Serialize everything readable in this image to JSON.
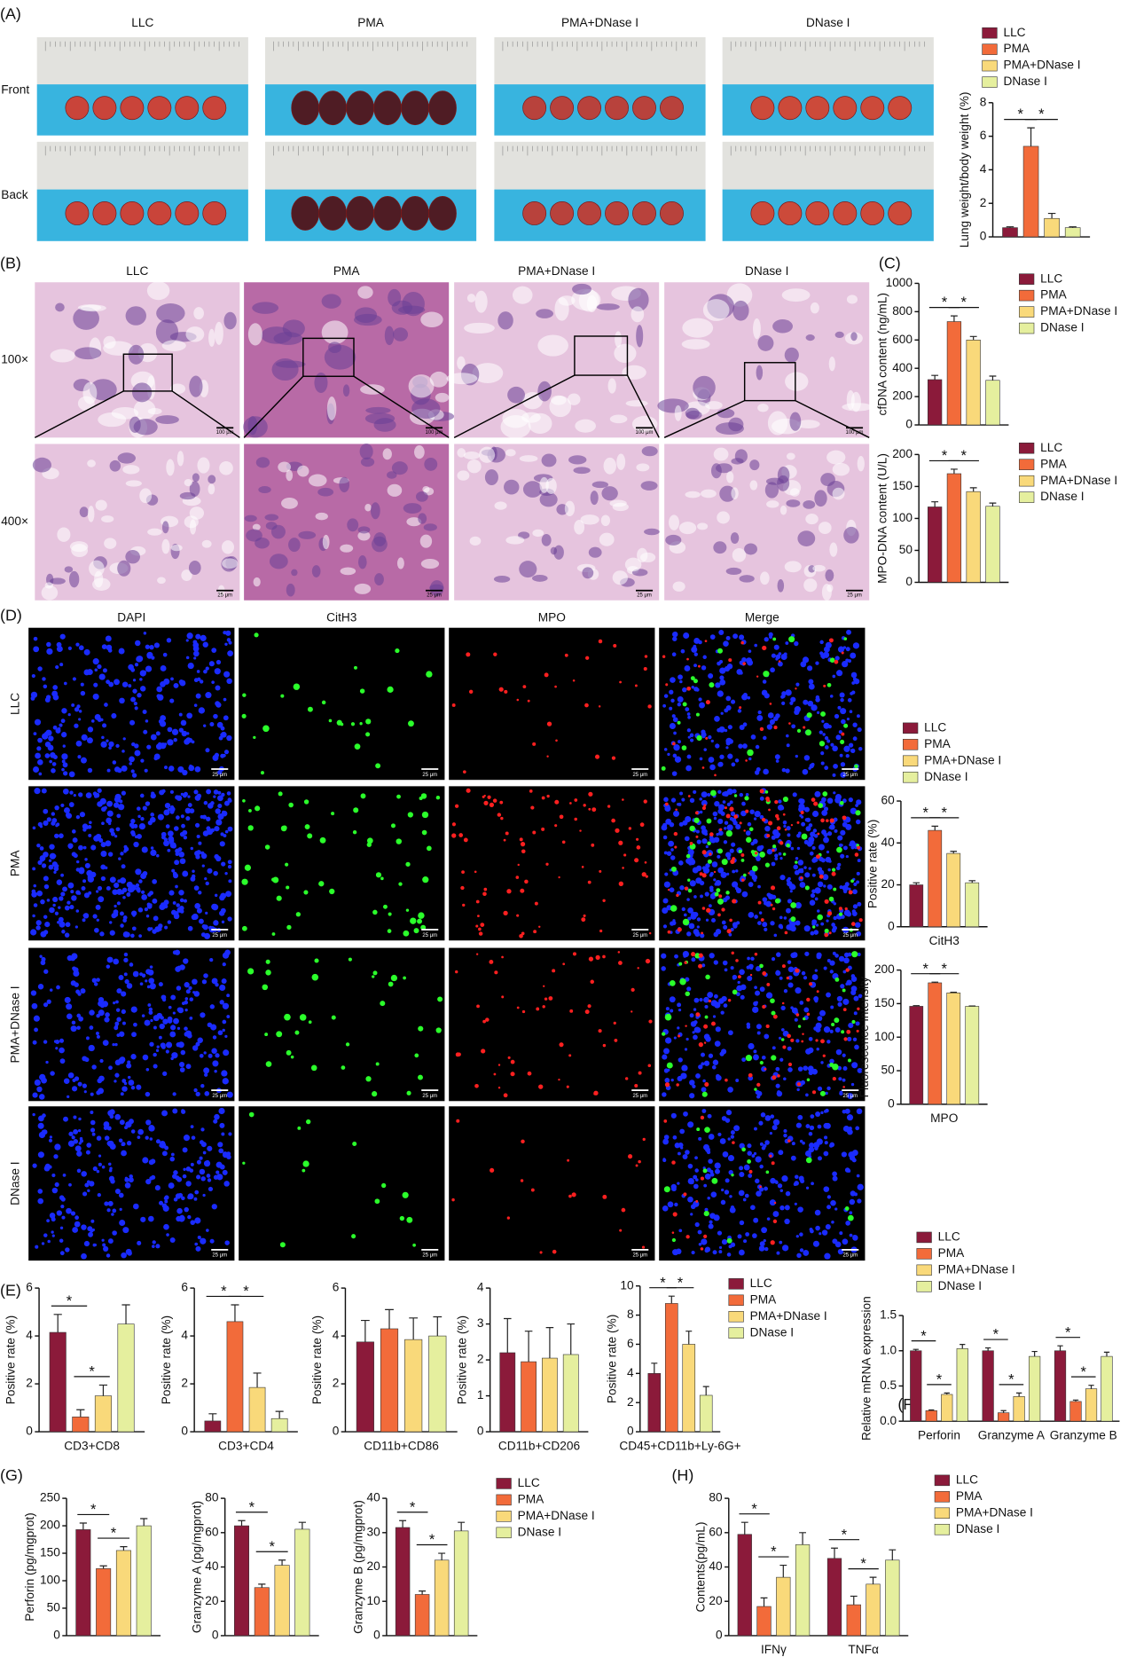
{
  "panel_labels": [
    "(A)",
    "(B)",
    "(C)",
    "(D)",
    "(E)",
    "(F)",
    "(G)",
    "(H)"
  ],
  "lung_photos": {
    "groups": [
      "LLC",
      "PMA",
      "PMA+DNase I",
      "DNase I"
    ],
    "views": [
      "Front",
      "Back"
    ]
  },
  "histology": {
    "groups": [
      "LLC",
      "PMA",
      "PMA+DNase I",
      "DNase I"
    ],
    "magnifications": [
      "100×",
      "400×"
    ],
    "scale_bars": [
      "100 μm",
      "25 μm"
    ]
  },
  "immunofluorescence": {
    "channels": [
      "DAPI",
      "CitH3",
      "MPO",
      "Merge"
    ],
    "groups": [
      "LLC",
      "PMA",
      "PMA+DNase I",
      "DNase I"
    ],
    "scale_bar": "25 μm"
  },
  "chart_data": [
    {
      "type": "bar",
      "ylabel": "Lung weight/body weight (%)",
      "categories": [
        null
      ],
      "series": [
        {
          "name": "LLC",
          "color": "#8b1a3a",
          "values": [
            0.55
          ],
          "errors": [
            0.05
          ]
        },
        {
          "name": "PMA",
          "color": "#f26b3a",
          "values": [
            5.4
          ],
          "errors": [
            1.1
          ]
        },
        {
          "name": "PMA+DNase I",
          "color": "#f9d97a",
          "values": [
            1.1
          ],
          "errors": [
            0.3
          ]
        },
        {
          "name": "DNase I",
          "color": "#e5ef9e",
          "values": [
            0.55
          ],
          "errors": [
            0.05
          ]
        }
      ],
      "ylim": [
        0,
        8
      ],
      "yticks": [
        0,
        2,
        4,
        6,
        8
      ],
      "legend": true,
      "annotations": [
        [
          "*",
          "*"
        ]
      ]
    },
    {
      "type": "bar",
      "ylabel": "cfDNA content (ng/mL)",
      "categories": [
        null
      ],
      "series": [
        {
          "name": "LLC",
          "color": "#8b1a3a",
          "values": [
            320
          ],
          "errors": [
            30
          ]
        },
        {
          "name": "PMA",
          "color": "#f26b3a",
          "values": [
            730
          ],
          "errors": [
            40
          ]
        },
        {
          "name": "PMA+DNase I",
          "color": "#f9d97a",
          "values": [
            600
          ],
          "errors": [
            25
          ]
        },
        {
          "name": "DNase I",
          "color": "#e5ef9e",
          "values": [
            315
          ],
          "errors": [
            30
          ]
        }
      ],
      "ylim": [
        0,
        1000
      ],
      "yticks": [
        0,
        200,
        400,
        600,
        800,
        1000
      ],
      "legend": true,
      "annotations": [
        [
          "*",
          "*"
        ]
      ]
    },
    {
      "type": "bar",
      "ylabel": "MPO-DNA content (U/L)",
      "categories": [
        null
      ],
      "series": [
        {
          "name": "LLC",
          "color": "#8b1a3a",
          "values": [
            118
          ],
          "errors": [
            8
          ]
        },
        {
          "name": "PMA",
          "color": "#f26b3a",
          "values": [
            170
          ],
          "errors": [
            7
          ]
        },
        {
          "name": "PMA+DNase I",
          "color": "#f9d97a",
          "values": [
            142
          ],
          "errors": [
            6
          ]
        },
        {
          "name": "DNase I",
          "color": "#e5ef9e",
          "values": [
            119
          ],
          "errors": [
            5
          ]
        }
      ],
      "ylim": [
        0,
        200
      ],
      "yticks": [
        0,
        50,
        100,
        150,
        200
      ],
      "legend": true,
      "annotations": [
        [
          "*",
          "*"
        ]
      ]
    },
    {
      "type": "bar",
      "ylabel": "Positive rate (%)",
      "categories": [
        "CitH3"
      ],
      "series": [
        {
          "name": "LLC",
          "color": "#8b1a3a",
          "values": [
            20
          ],
          "errors": [
            1
          ]
        },
        {
          "name": "PMA",
          "color": "#f26b3a",
          "values": [
            46
          ],
          "errors": [
            2
          ]
        },
        {
          "name": "PMA+DNase I",
          "color": "#f9d97a",
          "values": [
            35
          ],
          "errors": [
            1
          ]
        },
        {
          "name": "DNase I",
          "color": "#e5ef9e",
          "values": [
            21
          ],
          "errors": [
            1
          ]
        }
      ],
      "ylim": [
        0,
        60
      ],
      "yticks": [
        0,
        20,
        40,
        60
      ],
      "legend": true,
      "annotations": [
        [
          "*",
          "*"
        ]
      ]
    },
    {
      "type": "bar",
      "ylabel": "Fluorescence intensity",
      "categories": [
        "MPO"
      ],
      "series": [
        {
          "color": "#8b1a3a",
          "values": [
            146
          ],
          "errors": [
            1
          ]
        },
        {
          "color": "#f26b3a",
          "values": [
            181
          ],
          "errors": [
            1
          ]
        },
        {
          "color": "#f9d97a",
          "values": [
            166
          ],
          "errors": [
            1
          ]
        },
        {
          "color": "#e5ef9e",
          "values": [
            146
          ],
          "errors": [
            0.5
          ]
        }
      ],
      "ylim": [
        0,
        200
      ],
      "yticks": [
        0,
        50,
        100,
        150,
        200
      ],
      "annotations": [
        [
          "*",
          "*"
        ]
      ]
    },
    {
      "type": "bar",
      "ylabel": "Positive rate (%)",
      "categories": [
        "CD3+CD8"
      ],
      "series": [
        {
          "color": "#8b1a3a",
          "values": [
            4.15
          ],
          "errors": [
            0.75
          ]
        },
        {
          "color": "#f26b3a",
          "values": [
            0.62
          ],
          "errors": [
            0.3
          ]
        },
        {
          "color": "#f9d97a",
          "values": [
            1.5
          ],
          "errors": [
            0.45
          ]
        },
        {
          "color": "#e5ef9e",
          "values": [
            4.5
          ],
          "errors": [
            0.8
          ]
        }
      ],
      "ylim": [
        0,
        6
      ],
      "yticks": [
        0,
        2,
        4,
        6
      ],
      "annotations": [
        [
          "*",
          "*"
        ]
      ]
    },
    {
      "type": "bar",
      "ylabel": "Positive rate (%)",
      "categories": [
        "CD3+CD4"
      ],
      "series": [
        {
          "color": "#8b1a3a",
          "values": [
            0.45
          ],
          "errors": [
            0.3
          ]
        },
        {
          "color": "#f26b3a",
          "values": [
            4.6
          ],
          "errors": [
            0.7
          ]
        },
        {
          "color": "#f9d97a",
          "values": [
            1.85
          ],
          "errors": [
            0.6
          ]
        },
        {
          "color": "#e5ef9e",
          "values": [
            0.55
          ],
          "errors": [
            0.3
          ]
        }
      ],
      "ylim": [
        0,
        6
      ],
      "yticks": [
        0,
        2,
        4,
        6
      ],
      "annotations": [
        [
          "*",
          "*"
        ]
      ]
    },
    {
      "type": "bar",
      "ylabel": "Positive rate (%)",
      "categories": [
        "CD11b+CD86"
      ],
      "series": [
        {
          "color": "#8b1a3a",
          "values": [
            3.75
          ],
          "errors": [
            0.9
          ]
        },
        {
          "color": "#f26b3a",
          "values": [
            4.3
          ],
          "errors": [
            0.8
          ]
        },
        {
          "color": "#f9d97a",
          "values": [
            3.85
          ],
          "errors": [
            0.9
          ]
        },
        {
          "color": "#e5ef9e",
          "values": [
            4.0
          ],
          "errors": [
            0.8
          ]
        }
      ],
      "ylim": [
        0,
        6
      ],
      "yticks": [
        0,
        2,
        4,
        6
      ]
    },
    {
      "type": "bar",
      "ylabel": "Positive rate (%)",
      "categories": [
        "CD11b+CD206"
      ],
      "series": [
        {
          "color": "#8b1a3a",
          "values": [
            2.2
          ],
          "errors": [
            0.95
          ]
        },
        {
          "color": "#f26b3a",
          "values": [
            1.95
          ],
          "errors": [
            0.85
          ]
        },
        {
          "color": "#f9d97a",
          "values": [
            2.05
          ],
          "errors": [
            0.85
          ]
        },
        {
          "color": "#e5ef9e",
          "values": [
            2.15
          ],
          "errors": [
            0.85
          ]
        }
      ],
      "ylim": [
        0,
        4
      ],
      "yticks": [
        0,
        1,
        2,
        3,
        4
      ]
    },
    {
      "type": "bar",
      "ylabel": "Positive rate (%)",
      "categories": [
        "CD45+CD11b+Ly-6G+"
      ],
      "series": [
        {
          "name": "LLC",
          "color": "#8b1a3a",
          "values": [
            4.0
          ],
          "errors": [
            0.7
          ]
        },
        {
          "name": "PMA",
          "color": "#f26b3a",
          "values": [
            8.8
          ],
          "errors": [
            0.5
          ]
        },
        {
          "name": "PMA+DNase I",
          "color": "#f9d97a",
          "values": [
            6.0
          ],
          "errors": [
            0.9
          ]
        },
        {
          "name": "DNase I",
          "color": "#e5ef9e",
          "values": [
            2.5
          ],
          "errors": [
            0.6
          ]
        }
      ],
      "ylim": [
        0,
        10
      ],
      "yticks": [
        0,
        2,
        4,
        6,
        8,
        10
      ],
      "legend": true,
      "annotations": [
        [
          "*",
          "*"
        ]
      ]
    },
    {
      "type": "bar",
      "ylabel": "Relative mRNA expression",
      "categories": [
        "Perforin",
        "Granzyme A",
        "Granzyme B"
      ],
      "series": [
        {
          "name": "LLC",
          "color": "#8b1a3a",
          "values": [
            1.0,
            1.0,
            1.0
          ],
          "errors": [
            0.02,
            0.04,
            0.07
          ]
        },
        {
          "name": "PMA",
          "color": "#f26b3a",
          "values": [
            0.15,
            0.12,
            0.28
          ],
          "errors": [
            0.01,
            0.03,
            0.02
          ]
        },
        {
          "name": "PMA+DNase I",
          "color": "#f9d97a",
          "values": [
            0.38,
            0.35,
            0.46
          ],
          "errors": [
            0.02,
            0.05,
            0.05
          ]
        },
        {
          "name": "DNase I",
          "color": "#e5ef9e",
          "values": [
            1.03,
            0.92,
            0.92
          ],
          "errors": [
            0.06,
            0.07,
            0.06
          ]
        }
      ],
      "ylim": [
        0,
        1.5
      ],
      "yticks": [
        {
          "value": 0,
          "label": "0.0"
        },
        0.5,
        {
          "value": 1,
          "label": "1.0"
        },
        1.5
      ],
      "legend": true,
      "annotations": [
        [
          "*",
          "*"
        ],
        [
          "*",
          "*"
        ],
        [
          "*",
          "*"
        ]
      ]
    },
    {
      "type": "bar",
      "ylabel": "Perforin (pg/mgprot)",
      "categories": [
        null
      ],
      "series": [
        {
          "color": "#8b1a3a",
          "values": [
            193
          ],
          "errors": [
            12
          ]
        },
        {
          "color": "#f26b3a",
          "values": [
            122
          ],
          "errors": [
            5
          ]
        },
        {
          "color": "#f9d97a",
          "values": [
            155
          ],
          "errors": [
            7
          ]
        },
        {
          "color": "#e5ef9e",
          "values": [
            200
          ],
          "errors": [
            13
          ]
        }
      ],
      "ylim": [
        0,
        250
      ],
      "yticks": [
        0,
        50,
        100,
        150,
        200,
        250
      ],
      "annotations": [
        [
          "*",
          "*"
        ]
      ]
    },
    {
      "type": "bar",
      "ylabel": "Granzyme A (pg/mgprot)",
      "categories": [
        null
      ],
      "series": [
        {
          "color": "#8b1a3a",
          "values": [
            64
          ],
          "errors": [
            3
          ]
        },
        {
          "color": "#f26b3a",
          "values": [
            28
          ],
          "errors": [
            2
          ]
        },
        {
          "color": "#f9d97a",
          "values": [
            41
          ],
          "errors": [
            3
          ]
        },
        {
          "color": "#e5ef9e",
          "values": [
            62
          ],
          "errors": [
            4
          ]
        }
      ],
      "ylim": [
        0,
        80
      ],
      "yticks": [
        0,
        20,
        40,
        60,
        80
      ],
      "annotations": [
        [
          "*",
          "*"
        ]
      ]
    },
    {
      "type": "bar",
      "ylabel": "Granzyme B (pg/mgprot)",
      "categories": [
        null
      ],
      "series": [
        {
          "name": "LLC",
          "color": "#8b1a3a",
          "values": [
            31.5
          ],
          "errors": [
            2
          ]
        },
        {
          "name": "PMA",
          "color": "#f26b3a",
          "values": [
            12
          ],
          "errors": [
            1
          ]
        },
        {
          "name": "PMA+DNase I",
          "color": "#f9d97a",
          "values": [
            22
          ],
          "errors": [
            2
          ]
        },
        {
          "name": "DNase I",
          "color": "#e5ef9e",
          "values": [
            30.5
          ],
          "errors": [
            2.5
          ]
        }
      ],
      "ylim": [
        0,
        40
      ],
      "yticks": [
        0,
        10,
        20,
        30,
        40
      ],
      "legend": true,
      "annotations": [
        [
          "*",
          "*"
        ]
      ]
    },
    {
      "type": "bar",
      "ylabel": "Contents(pg/mL)",
      "categories": [
        "IFNγ",
        "TNFα"
      ],
      "series": [
        {
          "name": "LLC",
          "color": "#8b1a3a",
          "values": [
            59,
            45
          ],
          "errors": [
            7,
            6
          ]
        },
        {
          "name": "PMA",
          "color": "#f26b3a",
          "values": [
            17,
            18
          ],
          "errors": [
            5,
            5
          ]
        },
        {
          "name": "PMA+DNase I",
          "color": "#f9d97a",
          "values": [
            34,
            30
          ],
          "errors": [
            7,
            4
          ]
        },
        {
          "name": "DNase I",
          "color": "#e5ef9e",
          "values": [
            53,
            44
          ],
          "errors": [
            7,
            6
          ]
        }
      ],
      "ylim": [
        0,
        80
      ],
      "yticks": [
        0,
        20,
        40,
        60,
        80
      ],
      "legend": true,
      "annotations": [
        [
          "*",
          "*"
        ],
        [
          "*",
          "*"
        ]
      ]
    }
  ]
}
